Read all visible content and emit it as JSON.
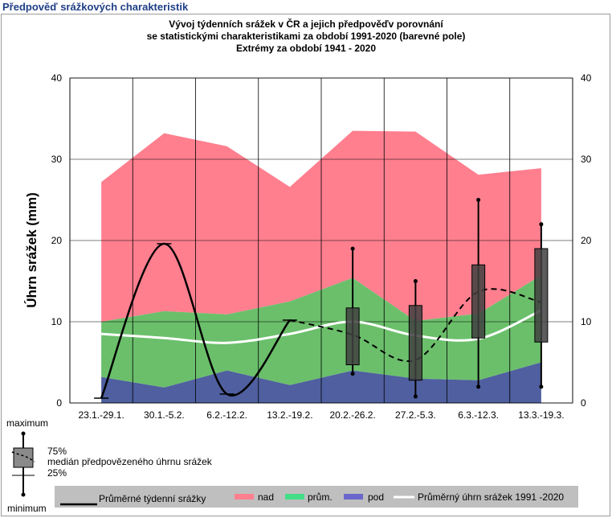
{
  "page_title": "Předpověď srážkových charakteristik",
  "chart_data": {
    "type": "area",
    "title": [
      "Vývoj týdenních srážek v ČR a jejich předpověďv porovnání",
      "se statistickými charakteristikami za období 1991-2020 (barevné pole)",
      "Extrémy za období 1941 - 2020"
    ],
    "ylabel": "Úhrn srážek (mm)",
    "ylim": [
      0,
      40
    ],
    "yticks": [
      "0",
      "10",
      "20",
      "30",
      "40"
    ],
    "categories": [
      "23.1.-29.1.",
      "30.1.-5.2.",
      "6.2.-12.2.",
      "13.2.-19.2.",
      "20.2.-26.2.",
      "27.2.-5.3.",
      "6.3.-12.3.",
      "13.3.-19.3."
    ],
    "bands": {
      "pod_upper": [
        3.2,
        1.9,
        4.0,
        2.2,
        4.0,
        3.0,
        2.8,
        5.0
      ],
      "prum_upper": [
        10.0,
        11.3,
        10.9,
        12.5,
        15.4,
        10.1,
        11.0,
        15.7
      ],
      "nad_upper": [
        27.2,
        33.2,
        31.6,
        26.6,
        33.5,
        33.4,
        28.1,
        28.9
      ]
    },
    "mean_1991_2020": [
      8.5,
      8.0,
      7.4,
      8.5,
      10.0,
      8.3,
      7.9,
      11.4
    ],
    "observed_weekly": [
      0.6,
      19.6,
      1.1,
      10.2
    ],
    "forecast": [
      {
        "category": "20.2.-26.2.",
        "min": 3.6,
        "q25": 4.7,
        "median": 8.4,
        "q75": 11.7,
        "max": 19.0
      },
      {
        "category": "27.2.-5.3.",
        "min": 0.8,
        "q25": 2.8,
        "median": 5.3,
        "q75": 12.0,
        "max": 15.0
      },
      {
        "category": "6.3.-12.3.",
        "min": 2.0,
        "q25": 8.0,
        "median": 13.7,
        "q75": 17.0,
        "max": 25.0
      },
      {
        "category": "13.3.-19.3.",
        "min": 2.0,
        "q25": 7.5,
        "median": 12.4,
        "q75": 19.0,
        "max": 22.0
      }
    ],
    "colors": {
      "nad": "#ff7f8f",
      "prum": "#6bbf6b",
      "pod": "#4f5f9f",
      "mean_line": "#ffffff",
      "observed_line": "#000000",
      "box_fill": "#3f3f3f",
      "legend_bar": "#bfbfbf",
      "legend_nad": "#ff7f8f",
      "legend_prum": "#44dd88",
      "legend_pod": "#6a66cc"
    },
    "legend": {
      "observed": "Průměrné týdenní srážky",
      "nad": "nad",
      "prum": "prům.",
      "pod": "pod",
      "mean": "Průměrný úhrn srážek 1991 -2020"
    },
    "box_key": {
      "maximum": "maximum",
      "q75": "75%",
      "median": "medián předpovězeného úhrnu srážek",
      "q25": "25%",
      "minimum": "minimum"
    },
    "grid": true
  }
}
